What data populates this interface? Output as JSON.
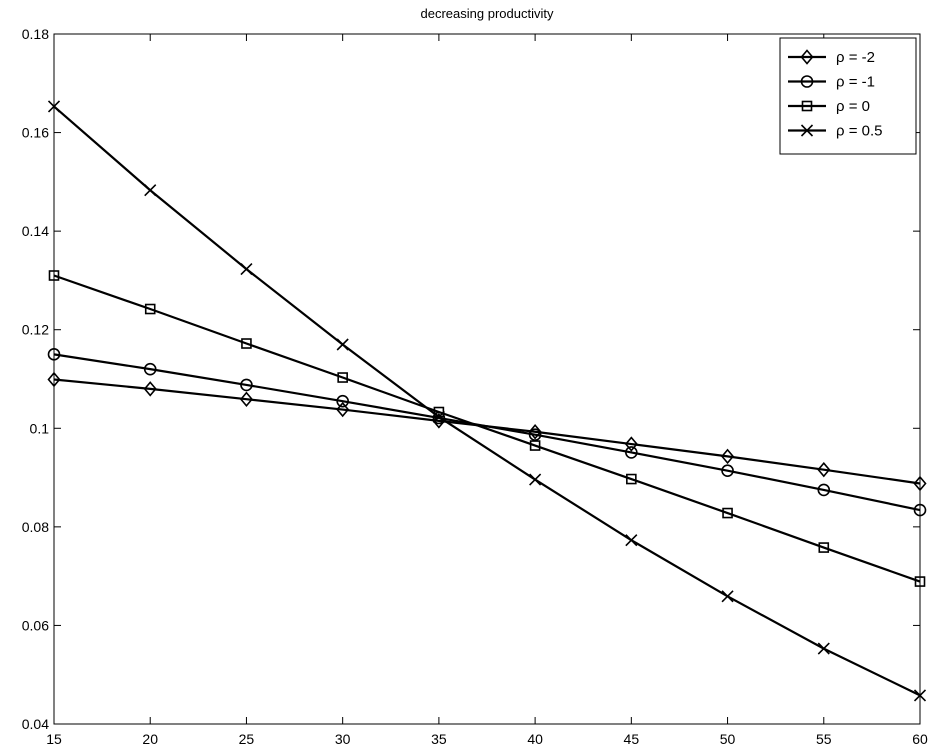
{
  "chart_data": {
    "type": "line",
    "title": "decreasing productivity",
    "xlabel": "",
    "ylabel": "",
    "xlim": [
      15,
      60
    ],
    "ylim": [
      0.04,
      0.18
    ],
    "x_ticks": [
      "15",
      "20",
      "25",
      "30",
      "35",
      "40",
      "45",
      "50",
      "55",
      "60"
    ],
    "y_ticks": [
      "0.04",
      "0.06",
      "0.08",
      "0.1",
      "0.12",
      "0.14",
      "0.16",
      "0.18"
    ],
    "grid": false,
    "legend_position": "top-right",
    "x": [
      15,
      20,
      25,
      30,
      35,
      40,
      45,
      50,
      55,
      60
    ],
    "series": [
      {
        "name": "ρ = -2",
        "marker": "diamond",
        "color": "#000000",
        "values": [
          0.1099,
          0.108,
          0.1059,
          0.1038,
          0.1015,
          0.0993,
          0.0968,
          0.0943,
          0.0916,
          0.0888
        ]
      },
      {
        "name": "ρ = -1",
        "marker": "circle",
        "color": "#000000",
        "values": [
          0.115,
          0.112,
          0.1088,
          0.1055,
          0.1021,
          0.0987,
          0.0951,
          0.0914,
          0.0875,
          0.0834
        ]
      },
      {
        "name": "ρ = 0",
        "marker": "square",
        "color": "#000000",
        "values": [
          0.131,
          0.1242,
          0.1172,
          0.1103,
          0.1033,
          0.0965,
          0.0897,
          0.0828,
          0.0758,
          0.0689
        ]
      },
      {
        "name": "ρ = 0.5",
        "marker": "x",
        "color": "#000000",
        "values": [
          0.1653,
          0.1483,
          0.1323,
          0.117,
          0.1023,
          0.0896,
          0.0773,
          0.0659,
          0.0553,
          0.0458
        ]
      }
    ]
  }
}
